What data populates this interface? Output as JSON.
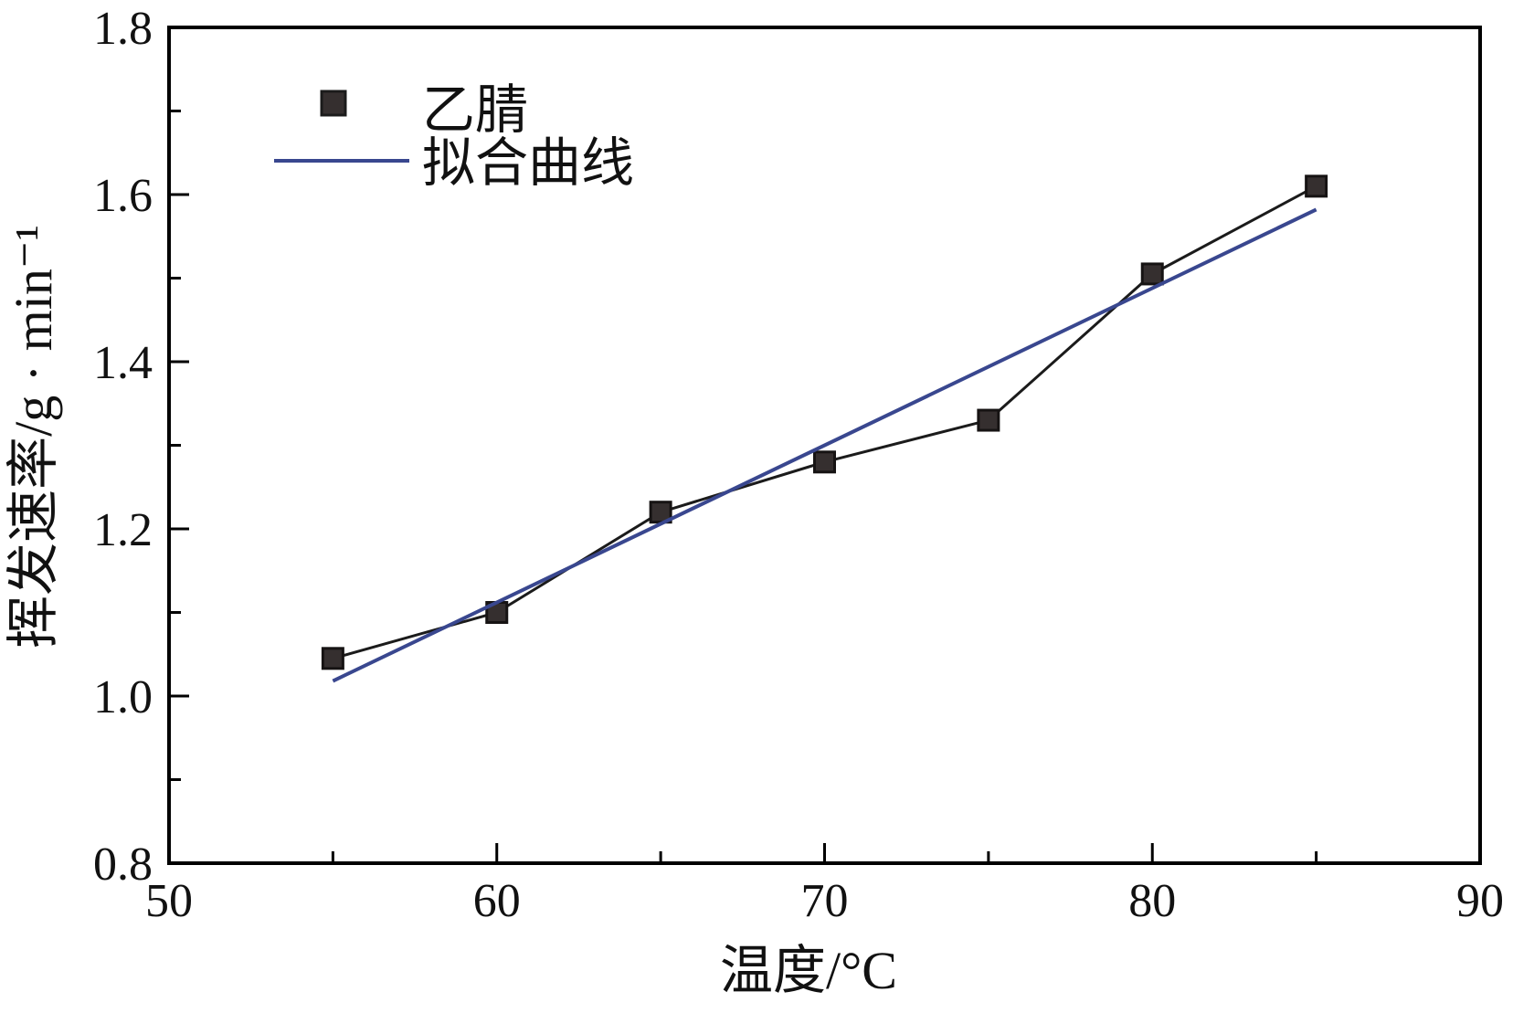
{
  "chart_data": {
    "type": "scatter",
    "title": "",
    "xlabel": "温度/°C",
    "ylabel": "挥发速率/g · min⁻¹",
    "xlim": [
      50,
      90
    ],
    "ylim": [
      0.8,
      1.8
    ],
    "grid": false,
    "legend_position": "top-left-inside",
    "x_ticks": {
      "values": [
        50,
        60,
        70,
        80,
        90
      ],
      "labels": [
        "50",
        "60",
        "70",
        "80",
        "90"
      ],
      "minor": [
        55,
        65,
        75,
        85
      ]
    },
    "y_ticks": {
      "values": [
        0.8,
        1.0,
        1.2,
        1.4,
        1.6,
        1.8
      ],
      "labels": [
        "0.8",
        "1.0",
        "1.2",
        "1.4",
        "1.6",
        "1.8"
      ],
      "minor": [
        0.9,
        1.1,
        1.3,
        1.5,
        1.7
      ]
    },
    "series": [
      {
        "name": "乙腈",
        "kind": "scatter-line",
        "marker": "square",
        "marker_color": "#352f2f",
        "line_color": "#1b1b1b",
        "x": [
          55,
          60,
          65,
          70,
          75,
          80,
          85
        ],
        "y": [
          1.045,
          1.1,
          1.22,
          1.28,
          1.33,
          1.505,
          1.61
        ]
      },
      {
        "name": "拟合曲线",
        "kind": "line",
        "marker": "none",
        "line_color": "#39478f",
        "x": [
          55,
          85
        ],
        "y": [
          1.018,
          1.582
        ]
      }
    ]
  },
  "colors": {
    "axis": "#000000",
    "fit_line": "#39478f",
    "data_marker": "#352f2f",
    "data_line": "#1b1b1b",
    "background": "#ffffff"
  }
}
